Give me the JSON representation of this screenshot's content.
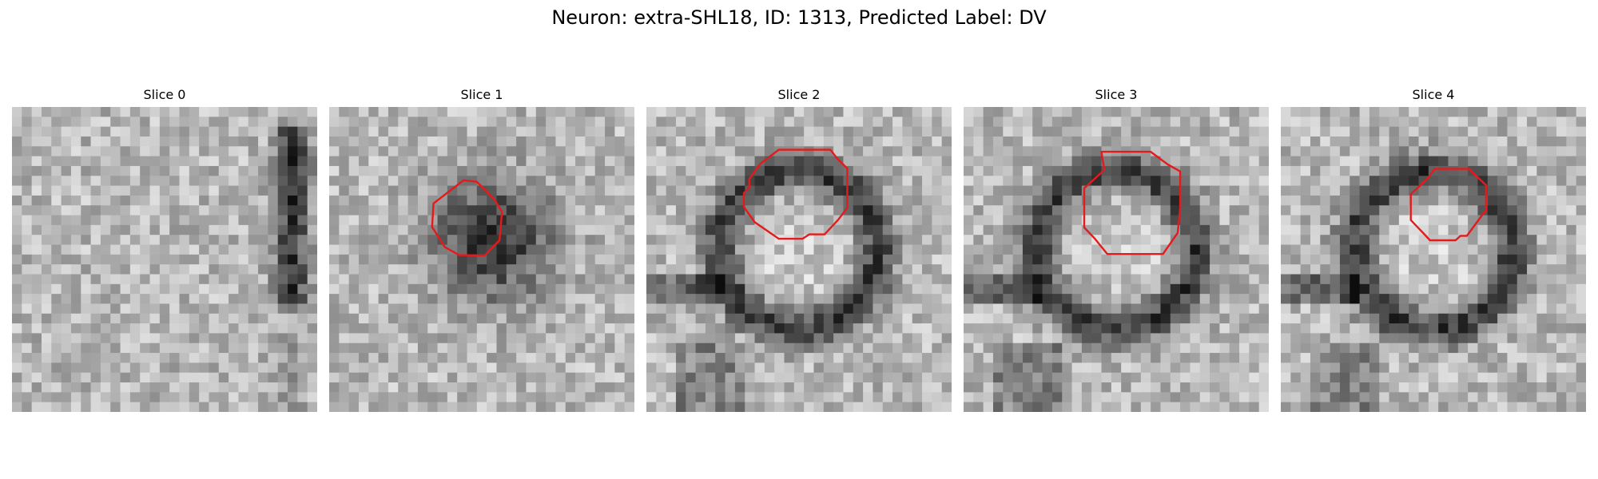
{
  "figure": {
    "title": "Neuron: extra-SHL18, ID: 1313, Predicted Label: DV"
  },
  "colors": {
    "contour": "#e41a1c",
    "background": "#ffffff"
  },
  "panels": [
    {
      "title": "Slice 0",
      "has_contour": false,
      "dark_mode": "edge",
      "contour": []
    },
    {
      "title": "Slice 1",
      "has_contour": true,
      "dark_mode": "blob",
      "contour": [
        [
          21.3,
          0.9
        ],
        [
          15.2,
          5.6
        ],
        [
          14.9,
          10.4
        ],
        [
          17.5,
          14.5
        ],
        [
          20.4,
          16.1
        ],
        [
          25.6,
          16.2
        ],
        [
          28.6,
          13.1
        ],
        [
          29.1,
          7.3
        ],
        [
          27.5,
          4.7
        ],
        [
          24.0,
          1.2
        ]
      ]
    },
    {
      "title": "Slice 2",
      "has_contour": true,
      "dark_mode": "ring",
      "contour": [
        [
          17.2,
          -2.5
        ],
        [
          14.9,
          0.6
        ],
        [
          14.9,
          2.4
        ],
        [
          13.8,
          3.5
        ],
        [
          13.8,
          6.3
        ],
        [
          16.0,
          9.4
        ],
        [
          20.9,
          12.8
        ],
        [
          25.7,
          12.8
        ],
        [
          27.1,
          11.9
        ],
        [
          30.2,
          11.9
        ],
        [
          32.9,
          9.0
        ],
        [
          34.8,
          6.5
        ],
        [
          34.8,
          -1.5
        ],
        [
          32.7,
          -3.6
        ],
        [
          31.4,
          -5.3
        ],
        [
          20.9,
          -5.3
        ]
      ]
    },
    {
      "title": "Slice 3",
      "has_contour": true,
      "dark_mode": "ring",
      "contour": [
        [
          22.6,
          -1.2
        ],
        [
          18.5,
          2.5
        ],
        [
          18.5,
          10.5
        ],
        [
          20.6,
          12.7
        ],
        [
          23.2,
          15.9
        ],
        [
          34.5,
          15.9
        ],
        [
          37.5,
          11.6
        ],
        [
          38.0,
          6.5
        ],
        [
          38.0,
          -0.9
        ],
        [
          35.5,
          -2.3
        ],
        [
          32.0,
          -4.9
        ],
        [
          22.0,
          -4.9
        ]
      ]
    },
    {
      "title": "Slice 4",
      "has_contour": true,
      "dark_mode": "ring",
      "contour": [
        [
          23.6,
          0.8
        ],
        [
          20.4,
          3.7
        ],
        [
          20.4,
          9.0
        ],
        [
          23.1,
          11.8
        ],
        [
          24.3,
          13.1
        ],
        [
          29.5,
          13.1
        ],
        [
          30.5,
          12.2
        ],
        [
          31.8,
          12.2
        ],
        [
          34.6,
          8.4
        ],
        [
          35.7,
          7.0
        ],
        [
          35.7,
          1.9
        ],
        [
          32.2,
          -1.4
        ],
        [
          28.0,
          -1.4
        ],
        [
          25.3,
          -1.4
        ]
      ]
    }
  ]
}
